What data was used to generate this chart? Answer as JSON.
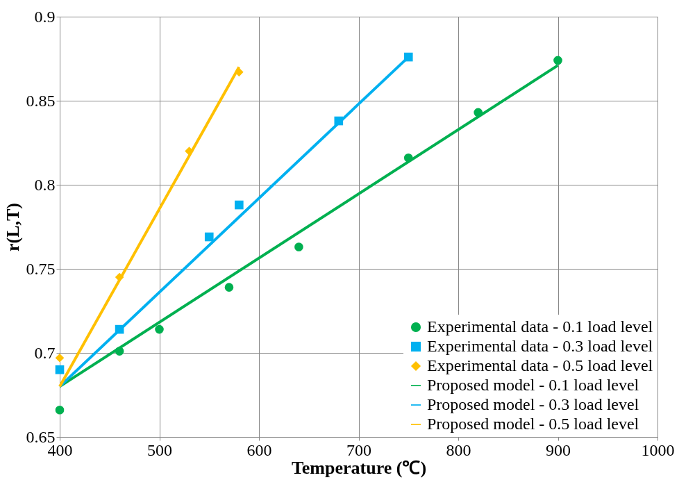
{
  "chart_data": {
    "type": "scatter",
    "xlabel": "Temperature (℃)",
    "ylabel": "r(L,T)",
    "xlim": [
      400,
      1000
    ],
    "xticks": [
      400,
      500,
      600,
      700,
      800,
      900,
      1000
    ],
    "ylim": [
      0.65,
      0.9
    ],
    "yticks": [
      0.65,
      0.7,
      0.75,
      0.8,
      0.85,
      0.9
    ],
    "grid": true,
    "legend": "bottom right",
    "series": [
      {
        "name": "Experimental data - 0.1 load level",
        "marker": "circle",
        "color": "#00b050",
        "x": [
          400,
          460,
          500,
          570,
          640,
          750,
          820,
          900
        ],
        "values": [
          0.666,
          0.701,
          0.714,
          0.739,
          0.763,
          0.816,
          0.843,
          0.874
        ]
      },
      {
        "name": "Experimental data - 0.3 load level",
        "marker": "square",
        "color": "#00b0f0",
        "x": [
          400,
          460,
          550,
          580,
          680,
          750
        ],
        "values": [
          0.69,
          0.714,
          0.769,
          0.788,
          0.838,
          0.876
        ]
      },
      {
        "name": "Experimental data - 0.5 load level",
        "marker": "diamond",
        "color": "#ffc000",
        "x": [
          400,
          460,
          530,
          580
        ],
        "values": [
          0.697,
          0.745,
          0.82,
          0.867
        ]
      },
      {
        "name": "Proposed model - 0.1 load level",
        "type": "line",
        "marker": "none",
        "color": "#00b050",
        "x": [
          400,
          900
        ],
        "values": [
          0.68,
          0.871
        ]
      },
      {
        "name": "Proposed model - 0.3 load level",
        "type": "line",
        "marker": "none",
        "color": "#00b0f0",
        "x": [
          400,
          750
        ],
        "values": [
          0.68,
          0.876
        ]
      },
      {
        "name": "Proposed model - 0.5 load level",
        "type": "line",
        "marker": "none",
        "color": "#ffc000",
        "x": [
          400,
          580
        ],
        "values": [
          0.68,
          0.87
        ]
      }
    ]
  }
}
